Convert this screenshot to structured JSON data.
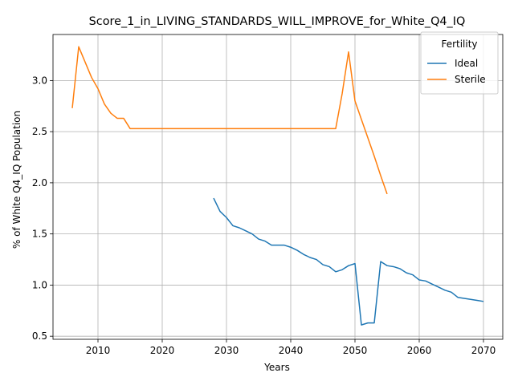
{
  "chart_data": {
    "type": "line",
    "title": "Score_1_in_LIVING_STANDARDS_WILL_IMPROVE_for_White_Q4_IQ",
    "xlabel": "Years",
    "ylabel": "% of White Q4_IQ Population",
    "xlim": [
      2003,
      2073
    ],
    "ylim": [
      0.47,
      3.45
    ],
    "xticks": [
      2010,
      2020,
      2030,
      2040,
      2050,
      2060,
      2070
    ],
    "yticks": [
      0.5,
      1.0,
      1.5,
      2.0,
      2.5,
      3.0
    ],
    "ytick_labels": [
      "0.5",
      "1.0",
      "1.5",
      "2.0",
      "2.5",
      "3.0"
    ],
    "grid": true,
    "legend": {
      "title": "Fertility",
      "placement": "top-right"
    },
    "series": [
      {
        "name": "Ideal",
        "color": "#1f77b4",
        "x": [
          2028,
          2029,
          2030,
          2031,
          2032,
          2033,
          2034,
          2035,
          2036,
          2037,
          2038,
          2039,
          2040,
          2041,
          2042,
          2043,
          2044,
          2045,
          2046,
          2047,
          2048,
          2049,
          2050,
          2051,
          2052,
          2053,
          2054,
          2055,
          2056,
          2057,
          2058,
          2059,
          2060,
          2061,
          2062,
          2063,
          2064,
          2065,
          2066,
          2067,
          2068,
          2069,
          2070
        ],
        "values": [
          1.85,
          1.72,
          1.66,
          1.58,
          1.56,
          1.53,
          1.5,
          1.45,
          1.43,
          1.39,
          1.39,
          1.39,
          1.37,
          1.34,
          1.3,
          1.27,
          1.25,
          1.2,
          1.18,
          1.13,
          1.15,
          1.19,
          1.21,
          0.61,
          0.63,
          0.63,
          1.23,
          1.19,
          1.18,
          1.16,
          1.12,
          1.1,
          1.05,
          1.04,
          1.01,
          0.98,
          0.95,
          0.93,
          0.88,
          0.87,
          0.86,
          0.85,
          0.84
        ]
      },
      {
        "name": "Sterile",
        "color": "#ff7f0e",
        "x": [
          2006,
          2007,
          2008,
          2009,
          2010,
          2011,
          2012,
          2013,
          2014,
          2015,
          2016,
          2017,
          2018,
          2019,
          2020,
          2021,
          2022,
          2023,
          2024,
          2025,
          2026,
          2027,
          2028,
          2029,
          2030,
          2031,
          2032,
          2033,
          2034,
          2035,
          2036,
          2037,
          2038,
          2039,
          2040,
          2041,
          2042,
          2043,
          2044,
          2045,
          2046,
          2047,
          2048,
          2049,
          2050,
          2051,
          2052,
          2053,
          2054,
          2055
        ],
        "values": [
          2.73,
          3.33,
          3.18,
          3.03,
          2.92,
          2.77,
          2.68,
          2.63,
          2.63,
          2.53,
          2.53,
          2.53,
          2.53,
          2.53,
          2.53,
          2.53,
          2.53,
          2.53,
          2.53,
          2.53,
          2.53,
          2.53,
          2.53,
          2.53,
          2.53,
          2.53,
          2.53,
          2.53,
          2.53,
          2.53,
          2.53,
          2.53,
          2.53,
          2.53,
          2.53,
          2.53,
          2.53,
          2.53,
          2.53,
          2.53,
          2.53,
          2.53,
          2.87,
          3.28,
          2.8,
          2.62,
          2.44,
          2.26,
          2.07,
          1.89
        ]
      }
    ]
  }
}
